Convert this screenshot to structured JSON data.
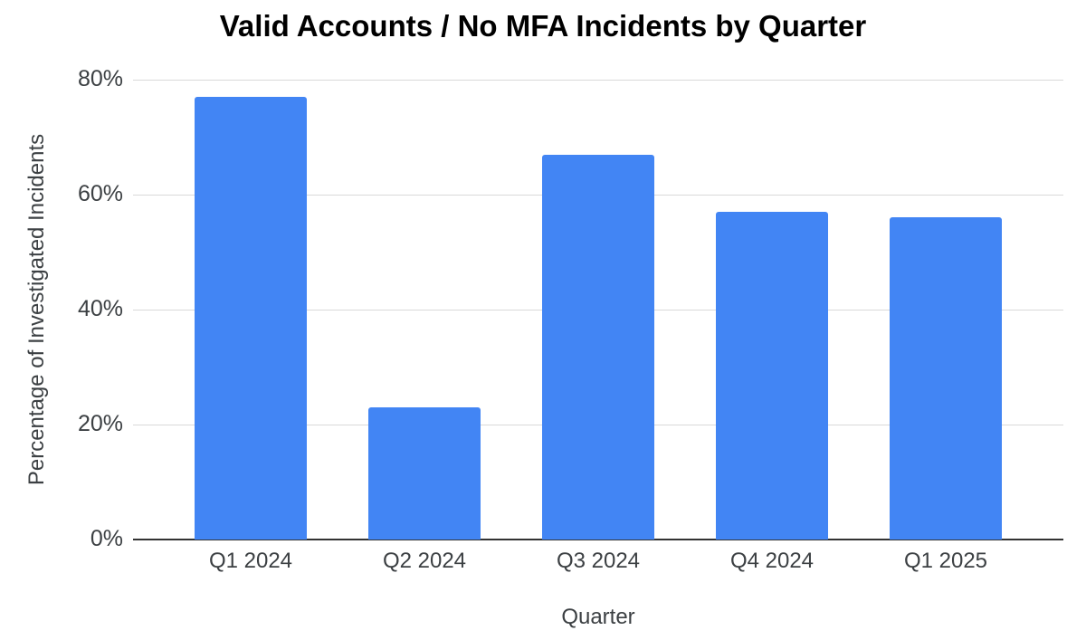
{
  "chart_data": {
    "type": "bar",
    "title": "Valid Accounts / No MFA Incidents by Quarter",
    "categories": [
      "Q1 2024",
      "Q2 2024",
      "Q3 2024",
      "Q4 2024",
      "Q1 2025"
    ],
    "values": [
      77,
      23,
      67,
      57,
      56
    ],
    "xlabel": "Quarter",
    "ylabel": "Percentage of Investigated Incidents",
    "y_ticks": [
      {
        "value": 0,
        "label": "0%"
      },
      {
        "value": 20,
        "label": "20%"
      },
      {
        "value": 40,
        "label": "40%"
      },
      {
        "value": 60,
        "label": "60%"
      },
      {
        "value": 80,
        "label": "80%"
      }
    ],
    "ylim": [
      0,
      80
    ],
    "grid": true,
    "legend_position": "none",
    "bar_color": "#4285F4",
    "gridline_color": "#d9d9d9",
    "axis_line_color": "#333333",
    "title_color": "#000000",
    "label_color": "#3c4043"
  }
}
